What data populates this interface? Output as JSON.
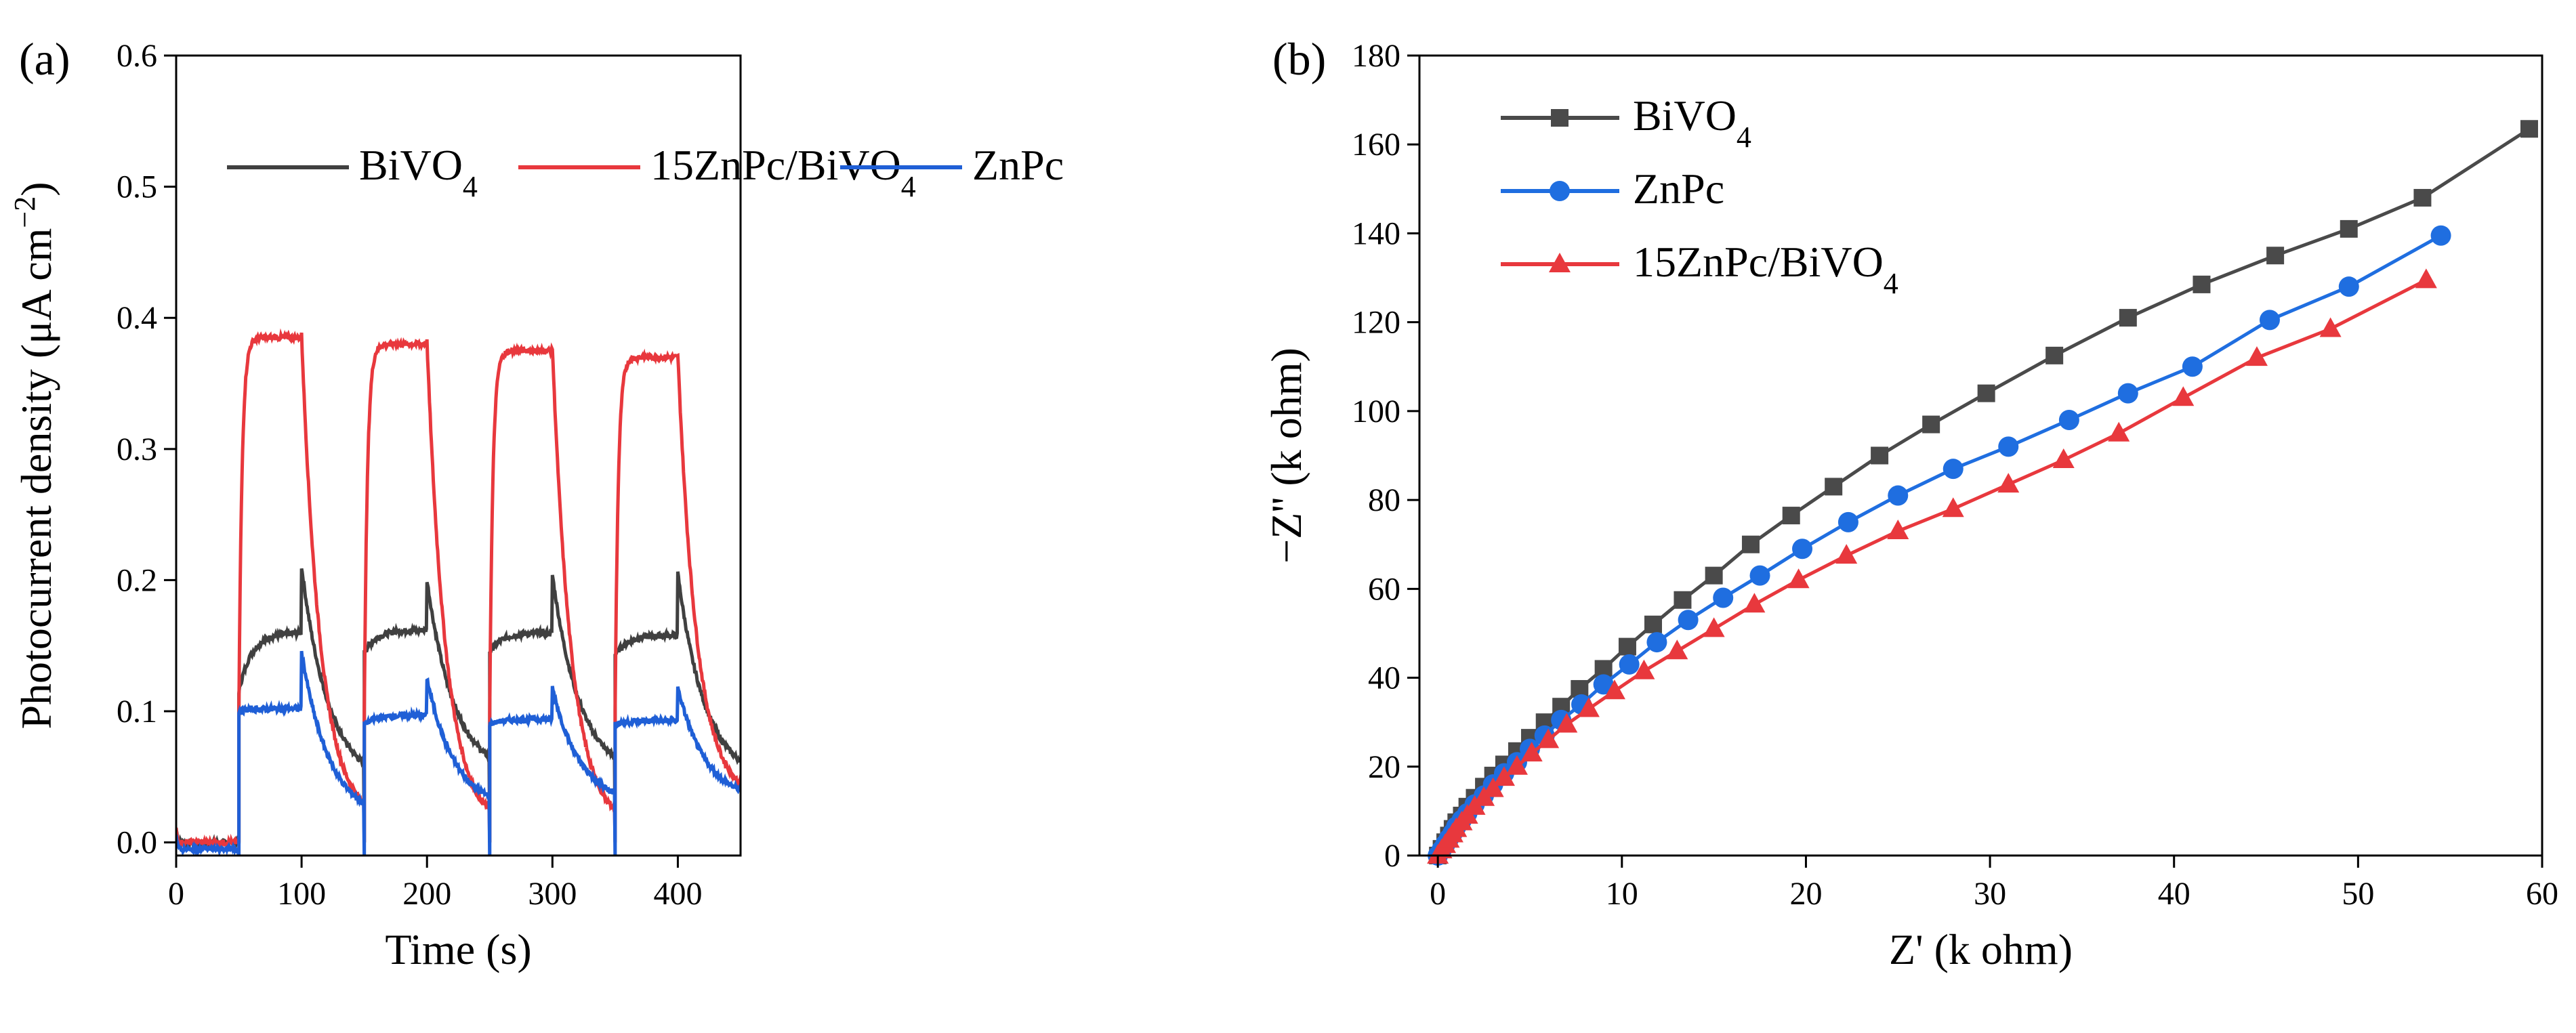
{
  "chart_data": [
    {
      "type": "line",
      "panel_label": "(a)",
      "title": "",
      "xlabel": "Time (s)",
      "ylabel": "Photocurrent density (μA cm⁻²)",
      "ylabel_parts": {
        "main": "Photocurrent density (μA cm",
        "sup": "−2",
        "end": ")"
      },
      "xlim": [
        0,
        450
      ],
      "ylim": [
        -0.01,
        0.6
      ],
      "xticks": [
        0,
        100,
        200,
        300,
        400
      ],
      "xtick_labels": [
        "0",
        "100",
        "200",
        "300",
        "400"
      ],
      "yticks": [
        0.0,
        0.1,
        0.2,
        0.3,
        0.4,
        0.5,
        0.6
      ],
      "ytick_labels": [
        "0.0",
        "0.1",
        "0.2",
        "0.3",
        "0.4",
        "0.5",
        "0.6"
      ],
      "grid": false,
      "legend_position": "top",
      "series": [
        {
          "name": "BiVO4",
          "label_main": "BiVO",
          "label_sub": "4",
          "color": "#404040",
          "dark_level": 0.0,
          "on_start": [
            0.115,
            0.145,
            0.145,
            0.143
          ],
          "on_end": [
            0.16,
            0.162,
            0.16,
            0.158
          ],
          "spike": [
            0.21,
            0.2,
            0.204,
            0.205
          ],
          "off_end": [
            0.06,
            0.065,
            0.065,
            0.062
          ]
        },
        {
          "name": "15ZnPc/BiVO4",
          "label_main": "15ZnPc/BiVO",
          "label_sub": "4",
          "color": "#e8383d",
          "dark_level": 0.0,
          "on_start": [
            0.1,
            0.1,
            0.1,
            0.1
          ],
          "on_end": [
            0.385,
            0.38,
            0.375,
            0.37
          ],
          "spike": [
            0.387,
            0.382,
            0.377,
            0.372
          ],
          "off_end": [
            0.03,
            0.025,
            0.025,
            0.045
          ]
        },
        {
          "name": "ZnPc",
          "label_main": "ZnPc",
          "label_sub": "",
          "color": "#1f5fd6",
          "dark_level": -0.005,
          "on_start": [
            0.1,
            0.09,
            0.09,
            0.09
          ],
          "on_end": [
            0.102,
            0.097,
            0.094,
            0.093
          ],
          "spike": [
            0.145,
            0.125,
            0.118,
            0.118
          ],
          "off_end": [
            0.03,
            0.035,
            0.038,
            0.04
          ]
        }
      ],
      "light_cycles": [
        [
          50,
          100
        ],
        [
          150,
          200
        ],
        [
          250,
          300
        ],
        [
          350,
          400
        ]
      ]
    },
    {
      "type": "line",
      "panel_label": "(b)",
      "title": "",
      "xlabel": "Z' (k ohm)",
      "ylabel": "−Z'' (k ohm)",
      "xlim": [
        -1,
        60
      ],
      "ylim": [
        0,
        180
      ],
      "xticks": [
        0,
        10,
        20,
        30,
        40,
        50,
        60
      ],
      "xtick_labels": [
        "0",
        "10",
        "20",
        "30",
        "40",
        "50",
        "60"
      ],
      "yticks": [
        0,
        20,
        40,
        60,
        80,
        100,
        120,
        140,
        160,
        180
      ],
      "ytick_labels": [
        "0",
        "20",
        "40",
        "60",
        "80",
        "100",
        "120",
        "140",
        "160",
        "180"
      ],
      "grid": false,
      "legend_position": "top-left",
      "series": [
        {
          "name": "BiVO4",
          "label_main": "BiVO",
          "label_sub": "4",
          "color": "#4a4a4a",
          "marker": "square",
          "x": [
            0,
            0.2,
            0.4,
            0.6,
            0.8,
            1.0,
            1.3,
            1.6,
            2.0,
            2.5,
            3.0,
            3.6,
            4.3,
            5.0,
            5.8,
            6.7,
            7.7,
            9.0,
            10.3,
            11.7,
            13.3,
            15.0,
            17.0,
            19.2,
            21.5,
            24.0,
            26.8,
            29.8,
            33.5,
            37.5,
            41.5,
            45.5,
            49.5,
            53.5,
            59.3
          ],
          "y": [
            0,
            1.5,
            3.0,
            4.5,
            6.0,
            7.5,
            9.0,
            11.0,
            13.0,
            15.5,
            18.0,
            20.5,
            23.5,
            26.5,
            30.0,
            33.5,
            37.5,
            42.0,
            47.0,
            52.0,
            57.5,
            63.0,
            70.0,
            76.5,
            83.0,
            90.0,
            97.0,
            104.0,
            112.5,
            121.0,
            128.5,
            135.0,
            141.0,
            148.0,
            163.5
          ]
        },
        {
          "name": "ZnPc",
          "label_main": "ZnPc",
          "label_sub": "",
          "color": "#1f6ee0",
          "marker": "circle",
          "x": [
            0,
            0.2,
            0.4,
            0.6,
            0.8,
            1.0,
            1.3,
            1.6,
            2.0,
            2.5,
            3.0,
            3.6,
            4.3,
            5.0,
            5.8,
            6.7,
            7.8,
            9.0,
            10.4,
            11.9,
            13.6,
            15.5,
            17.5,
            19.8,
            22.3,
            25.0,
            28.0,
            31.0,
            34.3,
            37.5,
            41.0,
            45.2,
            49.5,
            54.5
          ],
          "y": [
            0,
            1.2,
            2.5,
            3.8,
            5.0,
            6.5,
            8.0,
            9.5,
            11.5,
            13.5,
            16.0,
            18.5,
            21.0,
            24.0,
            27.0,
            30.5,
            34.0,
            38.5,
            43.0,
            48.0,
            53.0,
            58.0,
            63.0,
            69.0,
            75.0,
            81.0,
            87.0,
            92.0,
            98.0,
            104.0,
            110.0,
            120.5,
            128.0,
            139.5
          ]
        },
        {
          "name": "15ZnPc/BiVO4",
          "label_main": "15ZnPc/BiVO",
          "label_sub": "4",
          "color": "#e8383d",
          "marker": "triangle",
          "x": [
            0,
            0.2,
            0.4,
            0.6,
            0.8,
            1.0,
            1.3,
            1.6,
            2.0,
            2.5,
            3.0,
            3.6,
            4.3,
            5.1,
            6.0,
            7.0,
            8.2,
            9.6,
            11.2,
            13.0,
            15.0,
            17.2,
            19.6,
            22.2,
            25.0,
            28.0,
            31.0,
            34.0,
            37.0,
            40.5,
            44.5,
            48.5,
            53.7
          ],
          "y": [
            0,
            1.2,
            2.4,
            3.6,
            4.8,
            6.0,
            7.5,
            9.0,
            11.0,
            13.0,
            15.0,
            17.5,
            20.0,
            23.0,
            26.0,
            29.5,
            33.0,
            37.0,
            41.5,
            46.0,
            51.0,
            56.5,
            62.0,
            67.5,
            73.0,
            78.0,
            83.5,
            89.0,
            95.0,
            103.0,
            112.0,
            118.5,
            129.5
          ]
        }
      ]
    }
  ]
}
